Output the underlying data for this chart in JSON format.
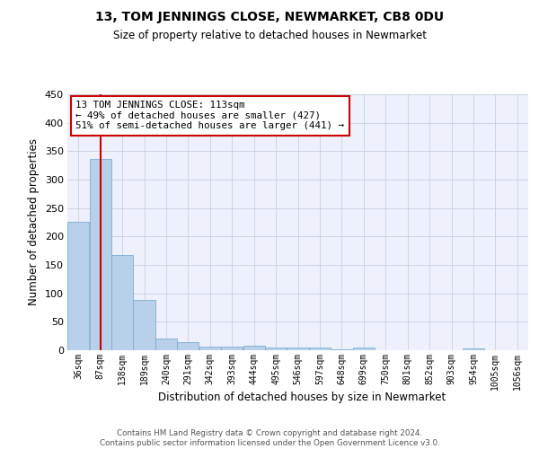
{
  "title": "13, TOM JENNINGS CLOSE, NEWMARKET, CB8 0DU",
  "subtitle": "Size of property relative to detached houses in Newmarket",
  "xlabel": "Distribution of detached houses by size in Newmarket",
  "ylabel": "Number of detached properties",
  "bar_color": "#b8d0ea",
  "bar_edge_color": "#7aadd4",
  "grid_color": "#c8cfe0",
  "background_color": "#eef1fb",
  "annotation_box_color": "#cc0000",
  "annotation_line_color": "#cc0000",
  "values": [
    226,
    337,
    168,
    88,
    21,
    15,
    6,
    7,
    8,
    4,
    5,
    4,
    2,
    5,
    0,
    0,
    0,
    0,
    3,
    0,
    0
  ],
  "bin_starts": [
    36,
    87,
    138,
    189,
    240,
    291,
    342,
    393,
    444,
    495,
    546,
    597,
    648,
    699,
    750,
    801,
    852,
    903,
    954,
    1005,
    1056
  ],
  "bin_width": 51,
  "property_size": 113,
  "annotation_line1": "13 TOM JENNINGS CLOSE: 113sqm",
  "annotation_line2": "← 49% of detached houses are smaller (427)",
  "annotation_line3": "51% of semi-detached houses are larger (441) →",
  "ylim": [
    0,
    450
  ],
  "yticks": [
    0,
    50,
    100,
    150,
    200,
    250,
    300,
    350,
    400,
    450
  ],
  "footer_line1": "Contains HM Land Registry data © Crown copyright and database right 2024.",
  "footer_line2": "Contains public sector information licensed under the Open Government Licence v3.0."
}
